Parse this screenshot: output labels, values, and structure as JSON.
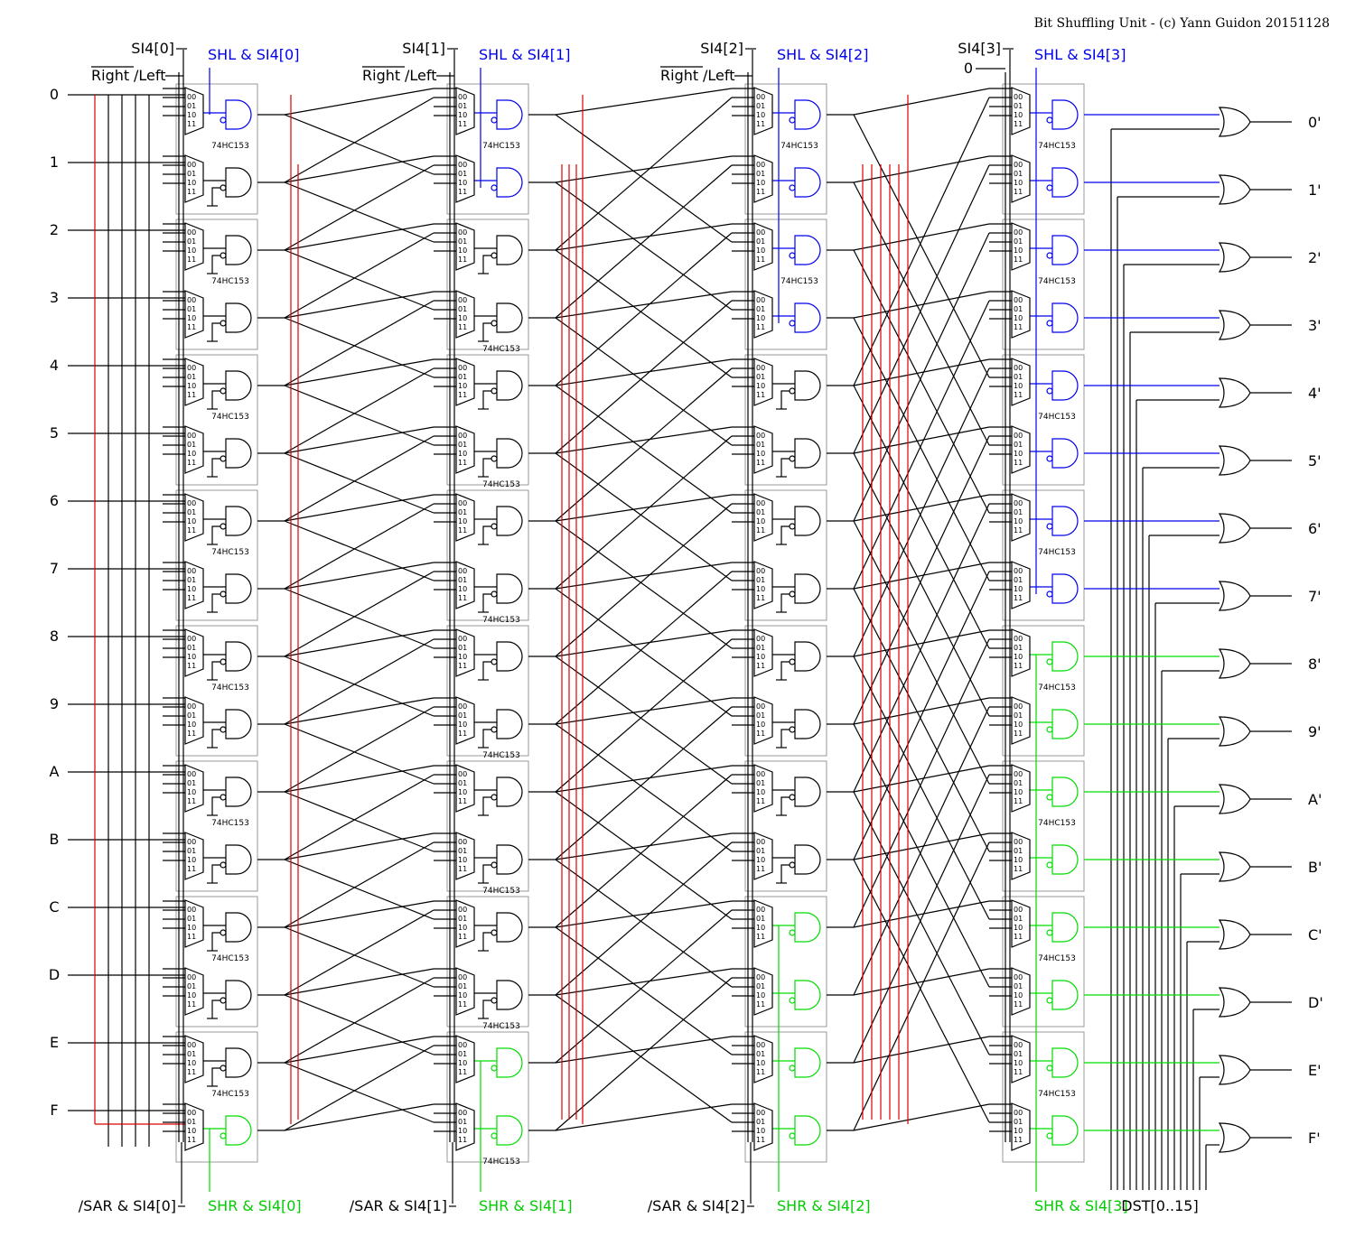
{
  "title": "Bit Shuffling Unit - (c) Yann Guidon 20151128",
  "inputs": [
    "0",
    "1",
    "2",
    "3",
    "4",
    "5",
    "6",
    "7",
    "8",
    "9",
    "A",
    "B",
    "C",
    "D",
    "E",
    "F"
  ],
  "outputs": [
    "0'",
    "1'",
    "2'",
    "3'",
    "4'",
    "5'",
    "6'",
    "7'",
    "8'",
    "9'",
    "A'",
    "B'",
    "C'",
    "D'",
    "E'",
    "F'"
  ],
  "stages": [
    {
      "si": "SI4[0]",
      "rl_over": "Right",
      "rl_rest": "/Left",
      "shl": "SHL & SI4[0]",
      "shr": "SHR & SI4[0]",
      "sar": "/SAR & SI4[0]"
    },
    {
      "si": "SI4[1]",
      "rl_over": "Right",
      "rl_rest": "/Left",
      "shl": "SHL & SI4[1]",
      "shr": "SHR & SI4[1]",
      "sar": "/SAR & SI4[1]"
    },
    {
      "si": "SI4[2]",
      "rl_over": "Right",
      "rl_rest": "/Left",
      "shl": "SHL & SI4[2]",
      "shr": "SHR & SI4[2]",
      "sar": "/SAR & SI4[2]"
    },
    {
      "si": "SI4[3]",
      "zero": "0",
      "shl": "SHL & SI4[3]",
      "shr": "SHR & SI4[3]"
    }
  ],
  "chip_label": "74HC153",
  "mux_inputs": [
    "00",
    "01",
    "10",
    "11"
  ],
  "dst_label": "DST[0..15]",
  "colors": {
    "blue": "#0000ee",
    "green": "#00dd00",
    "red": "#dd0000",
    "box": "#999999"
  }
}
